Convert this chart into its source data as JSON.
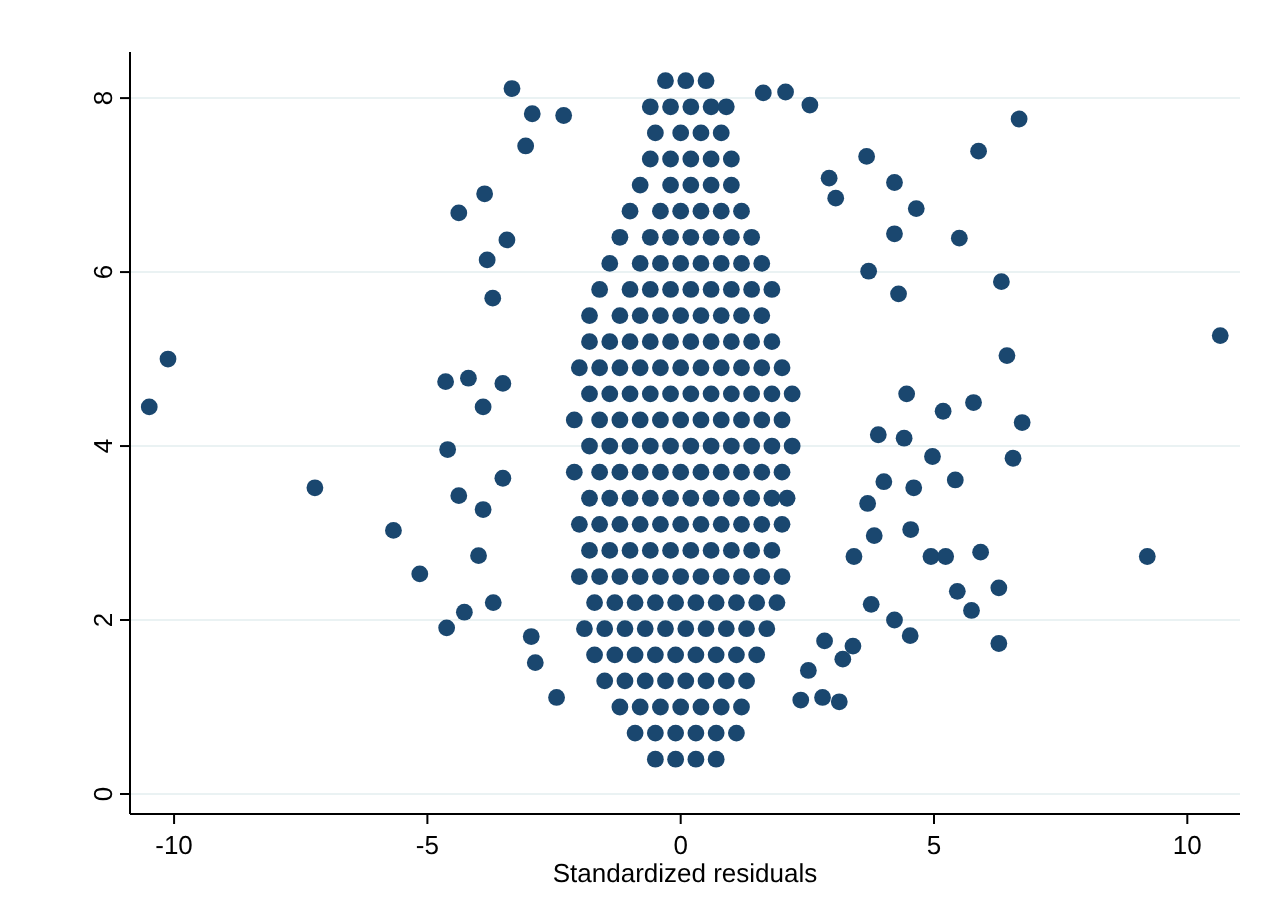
{
  "chart_data": {
    "type": "scatter",
    "xlabel": "Standardized residuals",
    "xlim": [
      -10.87,
      11.04
    ],
    "ylim": [
      -0.23,
      8.53
    ],
    "xticks": [
      -10,
      -5,
      0,
      5,
      10
    ],
    "yticks": [
      0,
      2,
      4,
      6,
      8
    ],
    "grid": "y",
    "marker": "circle",
    "series": [
      {
        "color": "#1a476f",
        "x": [
          -10.49,
          -10.12,
          -7.22,
          -5.67,
          -5.15,
          -4.62,
          -4.64,
          -4.6,
          -4.38,
          -3.33,
          -2.93,
          -2.31,
          -3.06,
          -3.87,
          -3.43,
          -3.82,
          -3.71,
          -4.19,
          -3.51,
          -3.9,
          -4.38,
          -3.9,
          -3.51,
          -3.99,
          -4.27,
          -3.7,
          -2.95,
          -2.87,
          -2.45,
          1.63,
          2.07,
          2.55,
          3.67,
          4.22,
          4.65,
          4.22,
          5.5,
          5.88,
          6.68,
          6.33,
          6.44,
          10.65,
          6.74,
          6.56,
          5.78,
          5.18,
          4.97,
          5.42,
          4.6,
          4.54,
          4.94,
          5.23,
          5.92,
          5.46,
          5.74,
          6.28,
          6.28,
          9.21,
          4.53,
          4.22,
          3.76,
          3.13,
          2.8,
          2.37,
          2.52,
          2.84,
          3.2,
          3.4,
          4.46,
          4.3,
          3.71,
          2.93,
          3.06,
          4.41,
          3.9,
          4.01,
          3.69,
          3.82,
          3.42
        ],
        "values": [
          4.45,
          5.0,
          3.52,
          3.03,
          2.53,
          1.91,
          4.74,
          3.96,
          6.68,
          8.11,
          7.82,
          7.8,
          7.45,
          6.9,
          6.37,
          6.14,
          5.7,
          4.78,
          4.72,
          4.45,
          3.43,
          3.27,
          3.63,
          2.74,
          2.09,
          2.2,
          1.81,
          1.51,
          1.11,
          8.06,
          8.07,
          7.92,
          7.33,
          7.03,
          6.73,
          6.44,
          6.39,
          7.39,
          7.76,
          5.89,
          5.04,
          5.27,
          4.27,
          3.86,
          4.5,
          4.4,
          3.88,
          3.61,
          3.52,
          3.04,
          2.73,
          2.73,
          2.78,
          2.33,
          2.11,
          2.37,
          1.73,
          2.73,
          1.82,
          2.0,
          2.18,
          1.06,
          1.11,
          1.08,
          1.42,
          1.76,
          1.55,
          1.7,
          4.6,
          5.75,
          6.01,
          7.08,
          6.85,
          4.09,
          4.13,
          3.59,
          3.34,
          2.97,
          2.73
        ]
      },
      {
        "color": "#1a476f",
        "x": [
          -0.5,
          -0.1,
          0.3,
          0.7,
          -0.9,
          -0.5,
          -0.1,
          0.3,
          0.7,
          1.1,
          -1.2,
          -0.8,
          -0.4,
          0,
          0.4,
          0.8,
          1.2,
          -1.5,
          -1.1,
          -0.7,
          -0.3,
          0.1,
          0.5,
          0.9,
          1.3,
          -1.7,
          -1.3,
          -0.9,
          -0.5,
          -0.1,
          0.3,
          0.7,
          1.1,
          1.5,
          -1.9,
          -1.5,
          -1.1,
          -0.7,
          -0.3,
          0.1,
          0.5,
          0.9,
          1.3,
          1.7,
          -1.7,
          -1.3,
          -0.9,
          -0.5,
          -0.1,
          0.3,
          0.7,
          1.1,
          1.5,
          1.9,
          -2.0,
          -1.6,
          -1.2,
          -0.8,
          -0.4,
          0,
          0.4,
          0.8,
          1.2,
          1.6,
          2.0,
          -1.8,
          -1.4,
          -1.0,
          -0.6,
          -0.2,
          0.2,
          0.6,
          1.0,
          1.4,
          1.8,
          -2.0,
          -1.6,
          -1.2,
          -0.8,
          -0.4,
          0,
          0.4,
          0.8,
          1.2,
          1.6,
          2.0,
          -1.8,
          -1.4,
          -1.0,
          -0.6,
          -0.2,
          0.2,
          0.6,
          1.0,
          1.4,
          1.8,
          2.1,
          -2.1,
          -1.6,
          -1.2,
          -0.8,
          -0.4,
          0,
          0.4,
          0.8,
          1.2,
          1.6,
          2.0,
          -1.8,
          -1.4,
          -1.0,
          -0.6,
          -0.2,
          0.2,
          0.6,
          1.0,
          1.4,
          1.8,
          2.2,
          -2.1,
          -1.6,
          -1.2,
          -0.8,
          -0.4,
          0,
          0.4,
          0.8,
          1.2,
          1.6,
          2.0,
          -1.8,
          -1.4,
          -1.0,
          -0.6,
          -0.2,
          0.2,
          0.6,
          1.0,
          1.4,
          1.8,
          2.2,
          -2.0,
          -1.6,
          -1.2,
          -0.8,
          -0.4,
          0,
          0.4,
          0.8,
          1.2,
          1.6,
          2.0,
          -1.8,
          -1.4,
          -1.0,
          -0.6,
          -0.2,
          0.2,
          0.6,
          1.0,
          1.4,
          1.8,
          -1.8,
          -1.2,
          -0.8,
          -0.4,
          0,
          0.4,
          0.8,
          1.2,
          1.6,
          -1.6,
          -1.0,
          -0.6,
          -0.2,
          0.2,
          0.6,
          1.0,
          1.4,
          1.8,
          -1.4,
          -0.8,
          -0.4,
          0,
          0.4,
          0.8,
          1.2,
          1.6,
          -1.2,
          -0.6,
          -0.2,
          0.2,
          0.6,
          1.0,
          1.4,
          -1.0,
          -0.4,
          0,
          0.4,
          0.8,
          1.2,
          -0.8,
          -0.2,
          0.2,
          0.6,
          1.0,
          -0.6,
          -0.2,
          0.2,
          0.6,
          1.0,
          -0.5,
          0,
          0.4,
          0.8,
          -0.6,
          -0.2,
          0.2,
          0.6,
          0.9,
          -0.3,
          0.1,
          0.5
        ],
        "values": [
          0.4,
          0.4,
          0.4,
          0.4,
          0.7,
          0.7,
          0.7,
          0.7,
          0.7,
          0.7,
          1.0,
          1.0,
          1.0,
          1.0,
          1.0,
          1.0,
          1.0,
          1.3,
          1.3,
          1.3,
          1.3,
          1.3,
          1.3,
          1.3,
          1.3,
          1.6,
          1.6,
          1.6,
          1.6,
          1.6,
          1.6,
          1.6,
          1.6,
          1.6,
          1.9,
          1.9,
          1.9,
          1.9,
          1.9,
          1.9,
          1.9,
          1.9,
          1.9,
          1.9,
          2.2,
          2.2,
          2.2,
          2.2,
          2.2,
          2.2,
          2.2,
          2.2,
          2.2,
          2.2,
          2.5,
          2.5,
          2.5,
          2.5,
          2.5,
          2.5,
          2.5,
          2.5,
          2.5,
          2.5,
          2.5,
          2.8,
          2.8,
          2.8,
          2.8,
          2.8,
          2.8,
          2.8,
          2.8,
          2.8,
          2.8,
          3.1,
          3.1,
          3.1,
          3.1,
          3.1,
          3.1,
          3.1,
          3.1,
          3.1,
          3.1,
          3.1,
          3.4,
          3.4,
          3.4,
          3.4,
          3.4,
          3.4,
          3.4,
          3.4,
          3.4,
          3.4,
          3.4,
          3.7,
          3.7,
          3.7,
          3.7,
          3.7,
          3.7,
          3.7,
          3.7,
          3.7,
          3.7,
          3.7,
          4.0,
          4.0,
          4.0,
          4.0,
          4.0,
          4.0,
          4.0,
          4.0,
          4.0,
          4.0,
          4.0,
          4.3,
          4.3,
          4.3,
          4.3,
          4.3,
          4.3,
          4.3,
          4.3,
          4.3,
          4.3,
          4.3,
          4.6,
          4.6,
          4.6,
          4.6,
          4.6,
          4.6,
          4.6,
          4.6,
          4.6,
          4.6,
          4.6,
          4.9,
          4.9,
          4.9,
          4.9,
          4.9,
          4.9,
          4.9,
          4.9,
          4.9,
          4.9,
          4.9,
          5.2,
          5.2,
          5.2,
          5.2,
          5.2,
          5.2,
          5.2,
          5.2,
          5.2,
          5.2,
          5.5,
          5.5,
          5.5,
          5.5,
          5.5,
          5.5,
          5.5,
          5.5,
          5.5,
          5.8,
          5.8,
          5.8,
          5.8,
          5.8,
          5.8,
          5.8,
          5.8,
          5.8,
          6.1,
          6.1,
          6.1,
          6.1,
          6.1,
          6.1,
          6.1,
          6.1,
          6.4,
          6.4,
          6.4,
          6.4,
          6.4,
          6.4,
          6.4,
          6.7,
          6.7,
          6.7,
          6.7,
          6.7,
          6.7,
          7.0,
          7.0,
          7.0,
          7.0,
          7.0,
          7.3,
          7.3,
          7.3,
          7.3,
          7.3,
          7.6,
          7.6,
          7.6,
          7.6,
          7.9,
          7.9,
          7.9,
          7.9,
          7.9,
          8.2,
          8.2,
          8.2
        ]
      }
    ]
  }
}
